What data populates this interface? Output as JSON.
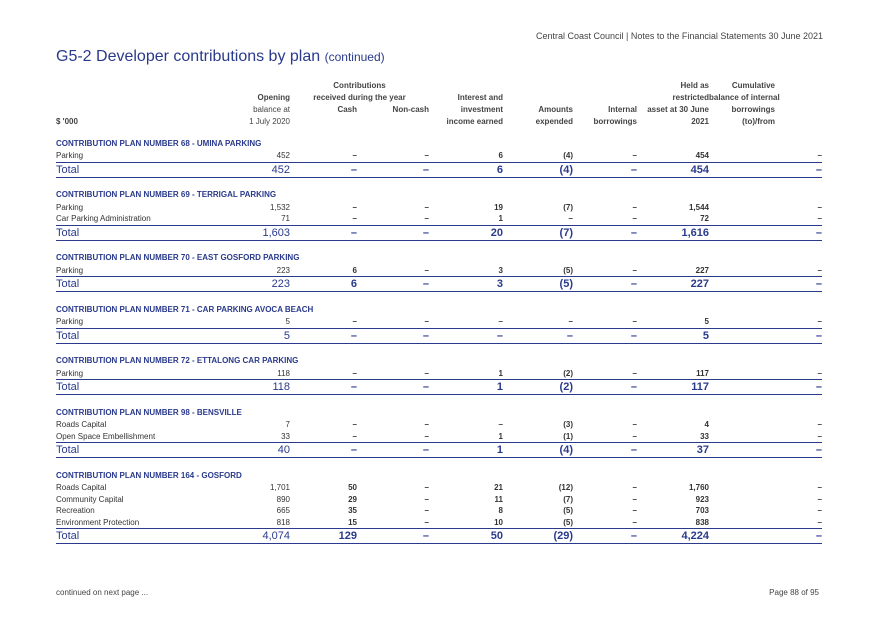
{
  "header": "Central Coast Council | Notes to the Financial Statements 30 June 2021",
  "title": "G5-2   Developer contributions by plan",
  "title_cont": "(continued)",
  "columns": {
    "unit": "$ '000",
    "opening": [
      "Opening",
      "balance at",
      "1 July 2020"
    ],
    "contrib_group": [
      "Contributions",
      "received during the year"
    ],
    "cash": "Cash",
    "noncash": "Non-cash",
    "interest": [
      "Interest and",
      "investment",
      "income earned"
    ],
    "amounts": [
      "Amounts",
      "expended"
    ],
    "internal": [
      "Internal",
      "borrowings"
    ],
    "held": [
      "Held as",
      "restricted",
      "asset at 30 June",
      "2021"
    ],
    "cumulative": [
      "Cumulative",
      "balance of internal",
      "borrowings",
      "(to)/from"
    ]
  },
  "plans": [
    {
      "name": "CONTRIBUTION PLAN NUMBER 68 - UMINA PARKING",
      "rows": [
        [
          "Parking",
          "452",
          "–",
          "–",
          "6",
          "(4)",
          "–",
          "454",
          "–"
        ]
      ],
      "total": [
        "Total",
        "452",
        "–",
        "–",
        "6",
        "(4)",
        "–",
        "454",
        "–"
      ]
    },
    {
      "name": "CONTRIBUTION PLAN NUMBER 69 - TERRIGAL PARKING",
      "rows": [
        [
          "Parking",
          "1,532",
          "–",
          "–",
          "19",
          "(7)",
          "–",
          "1,544",
          "–"
        ],
        [
          "Car Parking Administration",
          "71",
          "–",
          "–",
          "1",
          "–",
          "–",
          "72",
          "–"
        ]
      ],
      "total": [
        "Total",
        "1,603",
        "–",
        "–",
        "20",
        "(7)",
        "–",
        "1,616",
        "–"
      ]
    },
    {
      "name": "CONTRIBUTION PLAN NUMBER 70 - EAST GOSFORD PARKING",
      "rows": [
        [
          "Parking",
          "223",
          "6",
          "–",
          "3",
          "(5)",
          "–",
          "227",
          "–"
        ]
      ],
      "total": [
        "Total",
        "223",
        "6",
        "–",
        "3",
        "(5)",
        "–",
        "227",
        "–"
      ]
    },
    {
      "name": "CONTRIBUTION PLAN NUMBER 71 - CAR PARKING AVOCA BEACH",
      "rows": [
        [
          "Parking",
          "5",
          "–",
          "–",
          "–",
          "–",
          "–",
          "5",
          "–"
        ]
      ],
      "total": [
        "Total",
        "5",
        "–",
        "–",
        "–",
        "–",
        "–",
        "5",
        "–"
      ]
    },
    {
      "name": "CONTRIBUTION PLAN NUMBER 72 - ETTALONG CAR PARKING",
      "rows": [
        [
          "Parking",
          "118",
          "–",
          "–",
          "1",
          "(2)",
          "–",
          "117",
          "–"
        ]
      ],
      "total": [
        "Total",
        "118",
        "–",
        "–",
        "1",
        "(2)",
        "–",
        "117",
        "–"
      ]
    },
    {
      "name": "CONTRIBUTION PLAN NUMBER 98 - BENSVILLE",
      "rows": [
        [
          "Roads Capital",
          "7",
          "–",
          "–",
          "–",
          "(3)",
          "–",
          "4",
          "–"
        ],
        [
          "Open Space Embellishment",
          "33",
          "–",
          "–",
          "1",
          "(1)",
          "–",
          "33",
          "–"
        ]
      ],
      "total": [
        "Total",
        "40",
        "–",
        "–",
        "1",
        "(4)",
        "–",
        "37",
        "–"
      ]
    },
    {
      "name": "CONTRIBUTION PLAN NUMBER 164 - GOSFORD",
      "rows": [
        [
          "Roads Capital",
          "1,701",
          "50",
          "–",
          "21",
          "(12)",
          "–",
          "1,760",
          "–"
        ],
        [
          "Community Capital",
          "890",
          "29",
          "–",
          "11",
          "(7)",
          "–",
          "923",
          "–"
        ],
        [
          "Recreation",
          "665",
          "35",
          "–",
          "8",
          "(5)",
          "–",
          "703",
          "–"
        ],
        [
          "Environment Protection",
          "818",
          "15",
          "–",
          "10",
          "(5)",
          "–",
          "838",
          "–"
        ]
      ],
      "total": [
        "Total",
        "4,074",
        "129",
        "–",
        "50",
        "(29)",
        "–",
        "4,224",
        "–"
      ]
    }
  ],
  "footer_left": "continued on next page ...",
  "footer_right": "Page 88 of 95"
}
